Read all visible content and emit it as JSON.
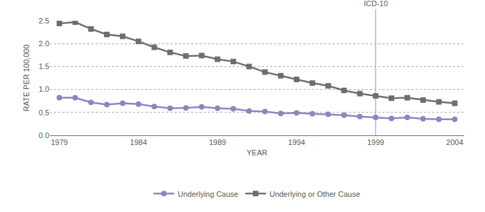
{
  "chart_data": {
    "type": "line",
    "x_label": "YEAR",
    "y_label": "RATE PER 100,000",
    "x": [
      1979,
      1980,
      1981,
      1982,
      1983,
      1984,
      1985,
      1986,
      1987,
      1988,
      1989,
      1990,
      1991,
      1992,
      1993,
      1994,
      1995,
      1996,
      1997,
      1998,
      1999,
      2000,
      2001,
      2002,
      2003,
      2004
    ],
    "series": [
      {
        "name": "Underlying Cause",
        "color": "#8b86bf",
        "marker": "circle",
        "values": [
          0.82,
          0.82,
          0.72,
          0.67,
          0.7,
          0.68,
          0.63,
          0.59,
          0.6,
          0.62,
          0.59,
          0.58,
          0.53,
          0.52,
          0.48,
          0.49,
          0.47,
          0.46,
          0.44,
          0.41,
          0.39,
          0.37,
          0.39,
          0.36,
          0.35,
          0.35
        ]
      },
      {
        "name": "Underlying or Other Cause",
        "color": "#6d6e71",
        "marker": "square",
        "values": [
          2.44,
          2.47,
          2.32,
          2.2,
          2.16,
          2.05,
          1.92,
          1.81,
          1.73,
          1.74,
          1.66,
          1.61,
          1.5,
          1.38,
          1.3,
          1.22,
          1.14,
          1.08,
          0.98,
          0.91,
          0.86,
          0.81,
          0.82,
          0.77,
          0.73,
          0.7
        ]
      }
    ],
    "xlim": [
      1978.4,
      2004.6
    ],
    "xticks": [
      1979,
      1984,
      1989,
      1994,
      1999,
      2004
    ],
    "ylim": [
      0,
      2.5
    ],
    "yticks": [
      {
        "value": 0,
        "label": "0.0"
      },
      0.5,
      {
        "value": 1,
        "label": "1.0"
      },
      1.5,
      {
        "value": 2,
        "label": "2.0"
      },
      2.5
    ],
    "grid": true,
    "legend": "bottom",
    "annotations": [
      {
        "x": 1999,
        "text": "ICD-10"
      }
    ]
  }
}
